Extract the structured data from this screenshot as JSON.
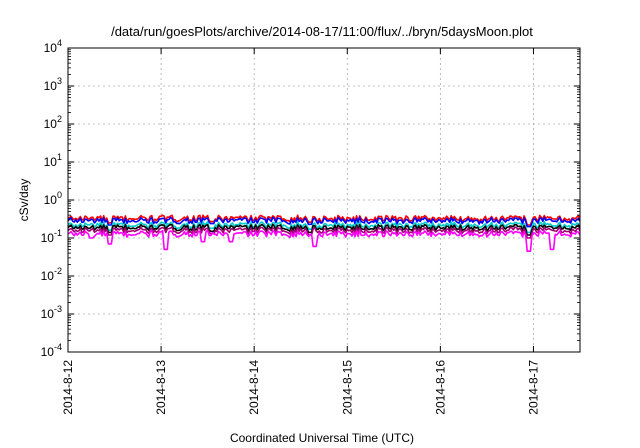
{
  "chart_data": {
    "type": "line",
    "title": "/data/run/goesPlots/archive/2014-08-17/11:00/flux/../bryn/5daysMoon.plot",
    "xlabel": "Coordinated Universal Time (UTC)",
    "ylabel": "cSv/day",
    "yscale": "log",
    "ylim": [
      0.0001,
      10000
    ],
    "y_ticks": [
      {
        "base": "10",
        "exp": "-4",
        "value": 0.0001
      },
      {
        "base": "10",
        "exp": "-3",
        "value": 0.001
      },
      {
        "base": "10",
        "exp": "-2",
        "value": 0.01
      },
      {
        "base": "10",
        "exp": "-1",
        "value": 0.1
      },
      {
        "base": "10",
        "exp": "0",
        "value": 1
      },
      {
        "base": "10",
        "exp": "1",
        "value": 10
      },
      {
        "base": "10",
        "exp": "2",
        "value": 100
      },
      {
        "base": "10",
        "exp": "3",
        "value": 1000
      },
      {
        "base": "10",
        "exp": "4",
        "value": 10000
      }
    ],
    "xlim": [
      "2014-08-12",
      "2014-08-17T12:00"
    ],
    "x_ticks": [
      "2014-8-12",
      "2014-8-13",
      "2014-8-14",
      "2014-8-15",
      "2014-8-16",
      "2014-8-17"
    ],
    "grid": true,
    "legend": "none",
    "series": [
      {
        "color": "#ff0000",
        "base": 0.33,
        "dips": [
          [
            0.45,
            0.25
          ],
          [
            1.55,
            0.27
          ],
          [
            2.6,
            0.26
          ],
          [
            4.95,
            0.22
          ]
        ]
      },
      {
        "color": "#0000ff",
        "base": 0.29,
        "dips": [
          [
            0.45,
            0.22
          ],
          [
            1.55,
            0.24
          ],
          [
            2.6,
            0.23
          ],
          [
            4.95,
            0.2
          ]
        ]
      },
      {
        "color": "#00cccc",
        "base": 0.22,
        "dips": [
          [
            0.45,
            0.16
          ],
          [
            1.55,
            0.18
          ],
          [
            2.6,
            0.17
          ],
          [
            4.95,
            0.14
          ]
        ]
      },
      {
        "color": "#000000",
        "base": 0.19,
        "dips": [
          [
            0.45,
            0.14
          ],
          [
            1.55,
            0.15
          ],
          [
            2.6,
            0.14
          ],
          [
            4.95,
            0.12
          ]
        ]
      },
      {
        "color": "#a00070",
        "base": 0.16,
        "dips": [
          [
            0.45,
            0.12
          ],
          [
            1.55,
            0.13
          ],
          [
            2.6,
            0.12
          ],
          [
            4.95,
            0.1
          ]
        ]
      },
      {
        "color": "#ff00ff",
        "base": 0.13,
        "dips": [
          [
            0.25,
            0.1
          ],
          [
            0.45,
            0.07
          ],
          [
            1.05,
            0.05
          ],
          [
            1.45,
            0.08
          ],
          [
            1.75,
            0.08
          ],
          [
            2.65,
            0.06
          ],
          [
            4.95,
            0.045
          ],
          [
            5.2,
            0.05
          ]
        ]
      }
    ]
  }
}
